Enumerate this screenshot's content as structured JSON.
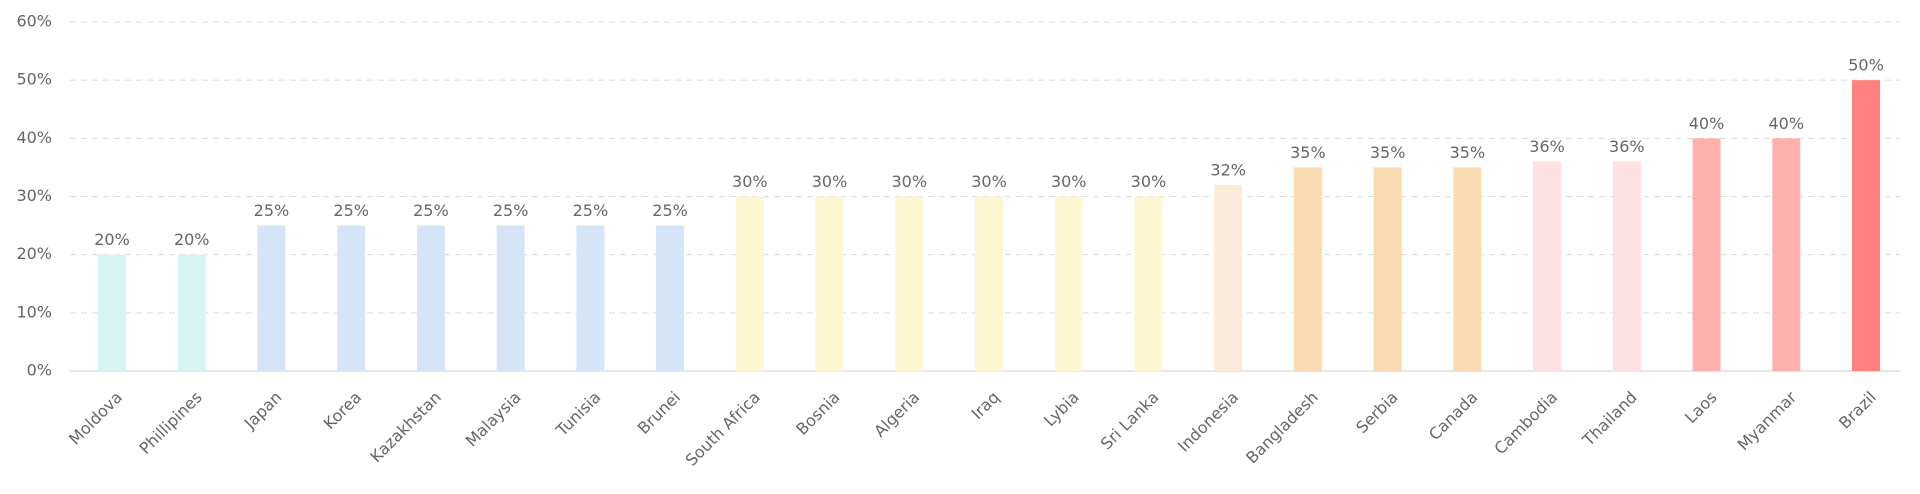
{
  "chart_data": {
    "type": "bar",
    "categories": [
      "Moldova",
      "Phillipines",
      "Japan",
      "Korea",
      "Kazakhstan",
      "Malaysia",
      "Tunisia",
      "Brunei",
      "South Africa",
      "Bosnia",
      "Algeria",
      "Iraq",
      "Lybia",
      "Sri Lanka",
      "Indonesia",
      "Bangladesh",
      "Serbia",
      "Canada",
      "Cambodia",
      "Thailand",
      "Laos",
      "Myanmar",
      "Brazil"
    ],
    "values": [
      20,
      20,
      25,
      25,
      25,
      25,
      25,
      25,
      30,
      30,
      30,
      30,
      30,
      30,
      32,
      35,
      35,
      35,
      36,
      36,
      40,
      40,
      50
    ],
    "value_labels": [
      "20%",
      "20%",
      "25%",
      "25%",
      "25%",
      "25%",
      "25%",
      "25%",
      "30%",
      "30%",
      "30%",
      "30%",
      "30%",
      "30%",
      "32%",
      "35%",
      "35%",
      "35%",
      "36%",
      "36%",
      "40%",
      "40%",
      "50%"
    ],
    "colors": [
      "#d5f5f3",
      "#d5f5f3",
      "#d6e4f7",
      "#d6e4f7",
      "#d6e4f7",
      "#d6e4f7",
      "#d6e4f7",
      "#d6e4f7",
      "#fdf6d3",
      "#fdf6d3",
      "#fdf6d3",
      "#fdf6d3",
      "#fdf6d3",
      "#fdf6d3",
      "#fdebd9",
      "#f8dbb0",
      "#f8dbb0",
      "#f8dbb0",
      "#fde0e2",
      "#fde0e2",
      "#ffb0ad",
      "#ffb0ad",
      "#ff807c"
    ],
    "ylim": [
      0,
      60
    ],
    "yticks": [
      {
        "value": 0,
        "label": "0%"
      },
      {
        "value": 10,
        "label": "10%"
      },
      {
        "value": 20,
        "label": "20%"
      },
      {
        "value": 30,
        "label": "30%"
      },
      {
        "value": 40,
        "label": "40%"
      },
      {
        "value": 50,
        "label": "50%"
      },
      {
        "value": 60,
        "label": "60%"
      }
    ],
    "grid": true
  }
}
